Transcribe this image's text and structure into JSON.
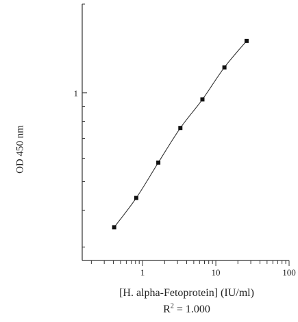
{
  "chart_data": {
    "type": "line",
    "xscale": "log",
    "yscale": "log",
    "xlim": [
      0.15,
      100
    ],
    "ylim": [
      0.27,
      2.0
    ],
    "xticks": [
      {
        "value": 1,
        "label": "1"
      },
      {
        "value": 10,
        "label": "10"
      },
      {
        "value": 100,
        "label": "100"
      }
    ],
    "yticks": [
      {
        "value": 1,
        "label": "1"
      }
    ],
    "xlabel": "[H. alpha-Fetoprotein] (IU/ml)",
    "ylabel": "OD 450 nm",
    "annotation": {
      "base": "R",
      "superscript": "2",
      "rest": " = 1.000"
    },
    "series": [
      {
        "x": [
          0.41,
          0.82,
          1.64,
          3.28,
          6.56,
          13.1,
          26.3
        ],
        "y": [
          0.35,
          0.44,
          0.58,
          0.76,
          0.95,
          1.22,
          1.5
        ]
      }
    ],
    "grid": false,
    "marker": "square",
    "curve_color": "#333333",
    "marker_color": "#111111"
  }
}
